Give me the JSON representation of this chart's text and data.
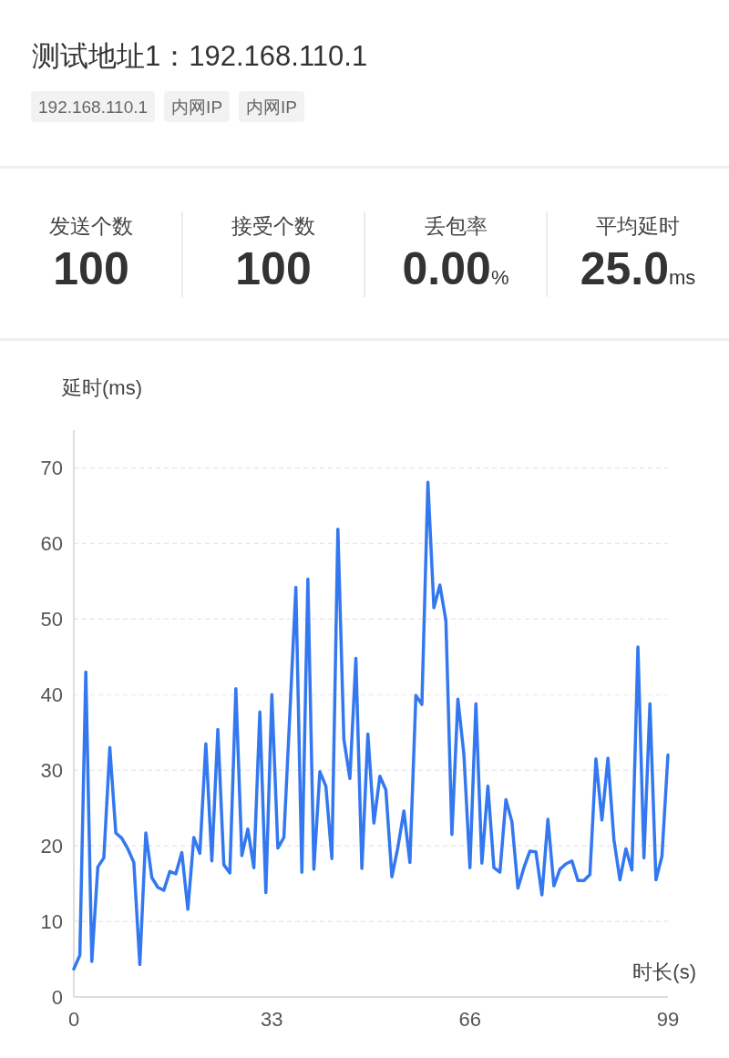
{
  "chart_data": [
    {
      "type": "other",
      "title": "测试地址1：192.168.110.1",
      "annotations": [
        "192.168.110.1",
        "内网IP",
        "内网IP",
        "发送个数",
        "100",
        "接受个数",
        "100",
        "丢包率",
        "0.00%",
        "平均延时",
        "25.0ms"
      ]
    },
    {
      "type": "line",
      "ylabel": "延时(ms)",
      "xlabel": "时长(s)",
      "color": "#3478f0",
      "x": [
        0,
        1,
        2,
        3,
        4,
        5,
        6,
        7,
        8,
        9,
        10,
        11,
        12,
        13,
        14,
        15,
        16,
        17,
        18,
        19,
        20,
        21,
        22,
        23,
        24,
        25,
        26,
        27,
        28,
        29,
        30,
        31,
        32,
        33,
        34,
        35,
        36,
        37,
        38,
        39,
        40,
        41,
        42,
        43,
        44,
        45,
        46,
        47,
        48,
        49,
        50,
        51,
        52,
        53,
        54,
        55,
        56,
        57,
        58,
        59,
        60,
        61,
        62,
        63,
        64,
        65,
        66,
        67,
        68,
        69,
        70,
        71,
        72,
        73,
        74,
        75,
        76,
        77,
        78,
        79,
        80,
        81,
        82,
        83,
        84,
        85,
        86,
        87,
        88,
        89,
        90,
        91,
        92,
        93,
        94,
        95,
        96,
        97,
        98,
        99
      ],
      "values": [
        3.7,
        5.5,
        43.0,
        4.7,
        17.2,
        18.4,
        33.0,
        21.7,
        21.0,
        19.6,
        17.8,
        4.3,
        21.7,
        15.8,
        14.5,
        14.1,
        16.6,
        16.3,
        19.1,
        11.6,
        21.1,
        19.0,
        33.5,
        18.0,
        35.4,
        17.5,
        16.4,
        40.8,
        18.7,
        22.2,
        17.1,
        37.7,
        13.8,
        40.0,
        19.7,
        21.1,
        37.5,
        54.2,
        16.5,
        55.3,
        16.9,
        29.8,
        27.9,
        18.3,
        61.9,
        34.1,
        28.9,
        44.8,
        17.0,
        34.8,
        23.0,
        29.2,
        27.4,
        15.9,
        19.8,
        24.6,
        17.8,
        39.9,
        38.7,
        68.1,
        51.5,
        54.5,
        49.8,
        21.5,
        39.4,
        32.1,
        17.1,
        38.8,
        17.7,
        27.9,
        17.1,
        16.5,
        26.1,
        23.2,
        14.4,
        17.1,
        19.3,
        19.2,
        13.5,
        23.5,
        14.7,
        16.9,
        17.6,
        18.0,
        15.4,
        15.4,
        16.2,
        31.5,
        23.4,
        31.6,
        20.8,
        15.5,
        19.6,
        16.8,
        46.3,
        18.4,
        38.8,
        15.5,
        18.6,
        32.0
      ],
      "xlim": [
        0,
        99
      ],
      "xticks": [
        0,
        33,
        66,
        99
      ],
      "ylim": [
        0,
        75
      ],
      "yticks": [
        0,
        10,
        20,
        30,
        40,
        50,
        60,
        70
      ],
      "grid": "y"
    }
  ]
}
